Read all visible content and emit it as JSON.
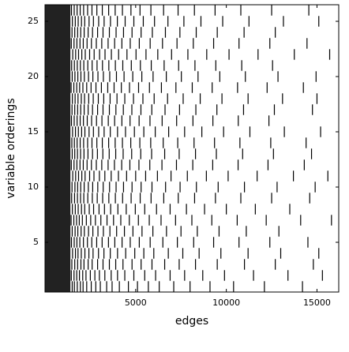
{
  "chart_data": {
    "type": "eventplot",
    "x_label": "edges",
    "y_label": "variable orderings",
    "xlim": [
      0,
      16200
    ],
    "ylim": [
      0.5,
      26.5
    ],
    "xticks": [
      5000,
      10000,
      15000
    ],
    "yticks": [
      5,
      10,
      15,
      20,
      25
    ],
    "color": "#000000",
    "solid_x": [
      0,
      1400
    ],
    "series": [
      {
        "y": 1,
        "x": [
          1500,
          1620,
          1780,
          1950,
          2100,
          2300,
          2550,
          2800,
          3050,
          3400,
          3700,
          4100,
          4600,
          5100,
          5700,
          6300,
          7100,
          8000,
          9100,
          10400,
          12100,
          14200
        ]
      },
      {
        "y": 2,
        "x": [
          1450,
          1600,
          1750,
          1900,
          2080,
          2260,
          2500,
          2750,
          3000,
          3300,
          3650,
          4000,
          4400,
          4900,
          5500,
          6100,
          6900,
          7700,
          8700,
          9900,
          11500,
          13400,
          15300
        ]
      },
      {
        "y": 3,
        "x": [
          1480,
          1640,
          1800,
          1980,
          2150,
          2380,
          2600,
          2900,
          3200,
          3550,
          3900,
          4300,
          4800,
          5300,
          5900,
          6600,
          7400,
          8300,
          9500,
          11000,
          12700,
          14800
        ]
      },
      {
        "y": 4,
        "x": [
          1520,
          1680,
          1820,
          2000,
          2200,
          2420,
          2650,
          2950,
          3250,
          3600,
          4000,
          4450,
          4950,
          5450,
          6000,
          6800,
          7600,
          8500,
          9700,
          11200,
          13000,
          15100
        ]
      },
      {
        "y": 5,
        "x": [
          1460,
          1610,
          1760,
          1920,
          2120,
          2340,
          2580,
          2850,
          3150,
          3500,
          3850,
          4250,
          4700,
          5200,
          5800,
          6500,
          7300,
          8200,
          9300,
          10700,
          12400,
          14500
        ]
      },
      {
        "y": 6,
        "x": [
          1500,
          1660,
          1810,
          1990,
          2170,
          2400,
          2640,
          2920,
          3220,
          3580,
          3950,
          4380,
          4850,
          5350,
          5950,
          6700,
          7500,
          8400,
          9600,
          11100,
          12900
        ]
      },
      {
        "y": 7,
        "x": [
          1440,
          1590,
          1740,
          1890,
          2060,
          2280,
          2520,
          2780,
          3080,
          3420,
          3780,
          4180,
          4650,
          5150,
          5750,
          6400,
          7200,
          8100,
          9200,
          10600,
          12200,
          14100,
          15800
        ]
      },
      {
        "y": 8,
        "x": [
          1510,
          1670,
          1830,
          2010,
          2190,
          2440,
          2680,
          2980,
          3280,
          3620,
          4020,
          4480,
          4980,
          5500,
          6150,
          6900,
          7800,
          8800,
          10000,
          11600,
          13500
        ]
      },
      {
        "y": 9,
        "x": [
          1470,
          1630,
          1790,
          1960,
          2140,
          2360,
          2610,
          2880,
          3180,
          3520,
          3880,
          4280,
          4750,
          5250,
          5850,
          6550,
          7350,
          8250,
          9400,
          10800,
          12500,
          14600
        ]
      },
      {
        "y": 10,
        "x": [
          1490,
          1650,
          1800,
          1970,
          2160,
          2390,
          2630,
          2910,
          3210,
          3560,
          3920,
          4330,
          4800,
          5300,
          5900,
          6650,
          7450,
          8350,
          9550,
          11000,
          12800,
          14900
        ]
      },
      {
        "y": 11,
        "x": [
          1530,
          1690,
          1850,
          2030,
          2210,
          2460,
          2700,
          3000,
          3300,
          3650,
          4050,
          4500,
          5000,
          5550,
          6200,
          6950,
          7850,
          8900,
          10100,
          11700,
          13700,
          15600
        ]
      },
      {
        "y": 12,
        "x": [
          1450,
          1600,
          1760,
          1930,
          2110,
          2320,
          2560,
          2830,
          3130,
          3480,
          3830,
          4230,
          4680,
          5180,
          5780,
          6450,
          7250,
          8150,
          9250,
          10650,
          12300,
          14300
        ]
      },
      {
        "y": 13,
        "x": [
          1500,
          1640,
          1790,
          1960,
          2150,
          2370,
          2620,
          2890,
          3190,
          3540,
          3900,
          4310,
          4780,
          5280,
          5880,
          6600,
          7400,
          8300,
          9450,
          10900,
          12600,
          14700
        ]
      },
      {
        "y": 14,
        "x": [
          1480,
          1620,
          1770,
          1940,
          2130,
          2350,
          2590,
          2860,
          3160,
          3510,
          3870,
          4270,
          4730,
          5230,
          5830,
          6520,
          7320,
          8220,
          9350,
          10750,
          12450,
          14400
        ]
      },
      {
        "y": 15,
        "x": [
          1520,
          1680,
          1840,
          2020,
          2200,
          2430,
          2670,
          2960,
          3260,
          3600,
          4000,
          4440,
          4930,
          5450,
          6080,
          6820,
          7700,
          8650,
          9850,
          11300,
          13200,
          15200
        ]
      },
      {
        "y": 16,
        "x": [
          1460,
          1610,
          1770,
          1940,
          2120,
          2330,
          2570,
          2840,
          3140,
          3490,
          3840,
          4240,
          4690,
          5190,
          5790,
          6460,
          7260,
          8160,
          9260,
          10660,
          12350
        ]
      },
      {
        "y": 17,
        "x": [
          1490,
          1640,
          1800,
          1970,
          2160,
          2380,
          2620,
          2900,
          3200,
          3550,
          3910,
          4320,
          4790,
          5290,
          5890,
          6620,
          7420,
          8320,
          9480,
          10950,
          12650,
          14750
        ]
      },
      {
        "y": 18,
        "x": [
          1510,
          1660,
          1820,
          2000,
          2180,
          2410,
          2660,
          2940,
          3240,
          3590,
          3970,
          4400,
          4880,
          5400,
          6020,
          6760,
          7620,
          8560,
          9760,
          11200,
          13100,
          15000
        ]
      },
      {
        "y": 19,
        "x": [
          1440,
          1590,
          1750,
          1910,
          2090,
          2300,
          2540,
          2810,
          3110,
          3460,
          3810,
          4210,
          4660,
          5160,
          5760,
          6420,
          7220,
          8120,
          9220,
          10620,
          12250,
          14250
        ]
      },
      {
        "y": 20,
        "x": [
          1500,
          1650,
          1810,
          1980,
          2170,
          2400,
          2640,
          2920,
          3220,
          3570,
          3940,
          4360,
          4840,
          5340,
          5960,
          6690,
          7520,
          8440,
          9640,
          11050,
          12850,
          14950
        ]
      },
      {
        "y": 21,
        "x": [
          1470,
          1620,
          1780,
          1950,
          2140,
          2360,
          2600,
          2870,
          3170,
          3520,
          3880,
          4290,
          4760,
          5260,
          5860,
          6570,
          7370,
          8270,
          9420,
          10850,
          12550
        ]
      },
      {
        "y": 22,
        "x": [
          1530,
          1690,
          1850,
          2030,
          2220,
          2460,
          2710,
          3010,
          3310,
          3660,
          4060,
          4520,
          5020,
          5570,
          6220,
          6980,
          7880,
          8920,
          10150,
          11750,
          13750,
          15700
        ]
      },
      {
        "y": 23,
        "x": [
          1450,
          1600,
          1760,
          1930,
          2110,
          2320,
          2560,
          2830,
          3130,
          3480,
          3840,
          4240,
          4700,
          5200,
          5800,
          6480,
          7280,
          8180,
          9300,
          10700,
          12400,
          14450
        ]
      },
      {
        "y": 24,
        "x": [
          1490,
          1640,
          1800,
          1970,
          2160,
          2380,
          2620,
          2900,
          3200,
          3550,
          3920,
          4330,
          4800,
          5300,
          5920,
          6640,
          7440,
          8340,
          9500,
          10980,
          12700
        ]
      },
      {
        "y": 25,
        "x": [
          1510,
          1670,
          1830,
          2010,
          2190,
          2430,
          2670,
          2960,
          3260,
          3610,
          3990,
          4420,
          4900,
          5420,
          6040,
          6780,
          7660,
          8600,
          9800,
          11250,
          13150,
          15100
        ]
      },
      {
        "y": 26,
        "x": [
          1460,
          1610,
          1770,
          1940,
          2130,
          2350,
          2590,
          2860,
          3160,
          3510,
          3870,
          4270,
          4740,
          5240,
          5840,
          6540,
          7340,
          8240,
          9380,
          10800,
          12500,
          14550
        ]
      }
    ]
  }
}
